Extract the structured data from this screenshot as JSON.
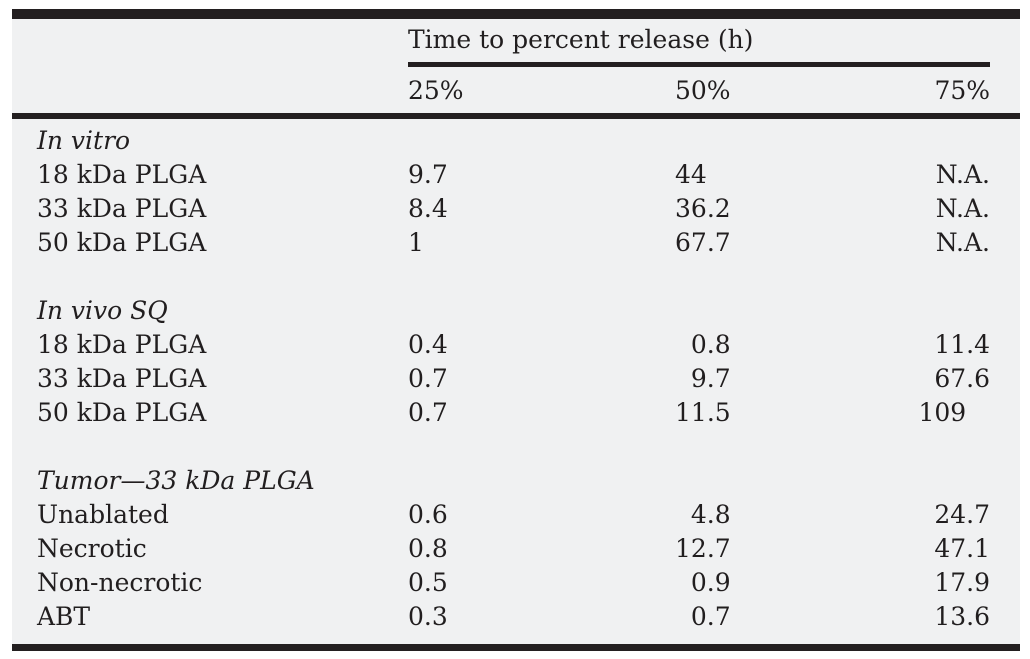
{
  "colors": {
    "table_background": "#f0f1f2",
    "rule_and_text": "#231f20"
  },
  "table": {
    "spanner": "Time to percent release (h)",
    "columns": [
      "25%",
      "50%",
      "75%"
    ],
    "sections": [
      {
        "label": "In vitro",
        "rows": [
          {
            "label": "18 kDa PLGA",
            "values": [
              "9.7",
              "44",
              "N.A."
            ]
          },
          {
            "label": "33 kDa PLGA",
            "values": [
              "8.4",
              "36.2",
              "N.A."
            ]
          },
          {
            "label": "50 kDa PLGA",
            "values": [
              "1",
              "67.7",
              "N.A."
            ]
          }
        ]
      },
      {
        "label": "In vivo SQ",
        "rows": [
          {
            "label": "18 kDa PLGA",
            "values": [
              "0.4",
              "0.8",
              "11.4"
            ]
          },
          {
            "label": "33 kDa PLGA",
            "values": [
              "0.7",
              "9.7",
              "67.6"
            ]
          },
          {
            "label": "50 kDa PLGA",
            "values": [
              "0.7",
              "11.5",
              "109"
            ]
          }
        ]
      },
      {
        "label": "Tumor—33 kDa PLGA",
        "rows": [
          {
            "label": "Unablated",
            "values": [
              "0.6",
              "4.8",
              "24.7"
            ]
          },
          {
            "label": "Necrotic",
            "values": [
              "0.8",
              "12.7",
              "47.1"
            ]
          },
          {
            "label": "Non-necrotic",
            "values": [
              "0.5",
              "0.9",
              "17.9"
            ]
          },
          {
            "label": "ABT",
            "values": [
              "0.3",
              "0.7",
              "13.6"
            ]
          }
        ]
      }
    ]
  }
}
